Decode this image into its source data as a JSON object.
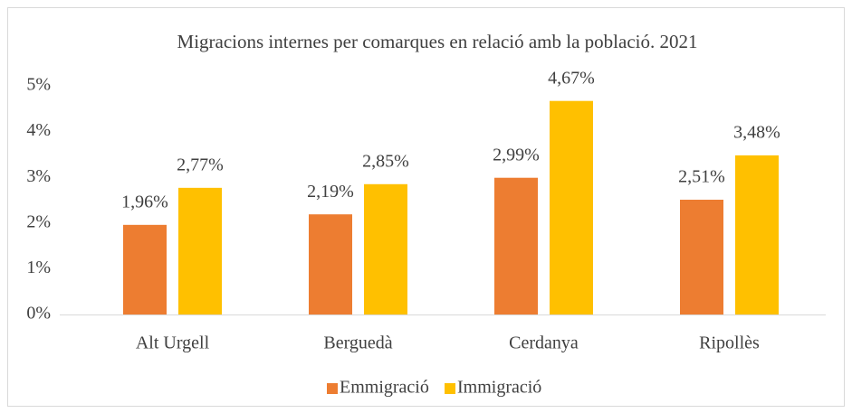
{
  "chart_data": {
    "type": "bar",
    "title": "Migracions internes per comarques en relació amb la població. 2021",
    "categories": [
      "Alt Urgell",
      "Berguedà",
      "Cerdanya",
      "Ripollès"
    ],
    "series": [
      {
        "name": "Emmigració",
        "color": "#ed7d31",
        "values": [
          1.96,
          2.19,
          2.99,
          2.51
        ],
        "value_labels": [
          "1,96%",
          "2,19%",
          "2,99%",
          "2,51%"
        ]
      },
      {
        "name": "Immigració",
        "color": "#ffc000",
        "values": [
          2.77,
          2.85,
          4.67,
          3.48
        ],
        "value_labels": [
          "2,77%",
          "2,85%",
          "4,67%",
          "3,48%"
        ]
      }
    ],
    "ylim": [
      0,
      5
    ],
    "yticks": [
      {
        "value": 0,
        "label": "0%"
      },
      {
        "value": 1,
        "label": "1%"
      },
      {
        "value": 2,
        "label": "2%"
      },
      {
        "value": 3,
        "label": "3%"
      },
      {
        "value": 4,
        "label": "4%"
      },
      {
        "value": 5,
        "label": "5%"
      }
    ],
    "grid": false,
    "legend": "bottom"
  }
}
